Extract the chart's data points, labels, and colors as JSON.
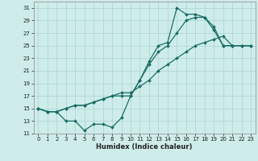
{
  "xlabel": "Humidex (Indice chaleur)",
  "background_color": "#ceecea",
  "grid_color": "#aed8d4",
  "line_color": "#1a6e65",
  "xlim": [
    -0.5,
    23.5
  ],
  "ylim": [
    11,
    32
  ],
  "yticks": [
    11,
    13,
    15,
    17,
    19,
    21,
    23,
    25,
    27,
    29,
    31
  ],
  "xticks": [
    0,
    1,
    2,
    3,
    4,
    5,
    6,
    7,
    8,
    9,
    10,
    11,
    12,
    13,
    14,
    15,
    16,
    17,
    18,
    19,
    20,
    21,
    22,
    23
  ],
  "series": [
    {
      "x": [
        0,
        1,
        2,
        3,
        4,
        5,
        6,
        7,
        8,
        9,
        10,
        11,
        12,
        13,
        14,
        15,
        16,
        17,
        18,
        19,
        20,
        21,
        22,
        23
      ],
      "y": [
        15,
        14.5,
        14.5,
        13,
        13,
        11.5,
        12.5,
        12.5,
        12,
        13.5,
        17,
        19.5,
        22.5,
        25,
        25.5,
        31,
        30,
        30,
        29.5,
        28,
        25,
        25,
        25,
        25
      ]
    },
    {
      "x": [
        0,
        1,
        2,
        3,
        4,
        5,
        6,
        7,
        8,
        9,
        10,
        11,
        12,
        13,
        14,
        15,
        16,
        17,
        18,
        19,
        20,
        21,
        22,
        23
      ],
      "y": [
        15,
        14.5,
        14.5,
        15,
        15.5,
        15.5,
        16,
        16.5,
        17,
        17,
        17,
        19.5,
        22,
        24,
        25,
        27,
        29,
        29.5,
        29.5,
        27.5,
        25,
        25,
        25,
        25
      ]
    },
    {
      "x": [
        0,
        1,
        2,
        3,
        4,
        5,
        6,
        7,
        8,
        9,
        10,
        11,
        12,
        13,
        14,
        15,
        16,
        17,
        18,
        19,
        20,
        21,
        22,
        23
      ],
      "y": [
        15,
        14.5,
        14.5,
        15,
        15.5,
        15.5,
        16,
        16.5,
        17,
        17.5,
        17.5,
        18.5,
        19.5,
        21,
        22,
        23,
        24,
        25,
        25.5,
        26,
        26.5,
        25,
        25,
        25
      ]
    }
  ]
}
